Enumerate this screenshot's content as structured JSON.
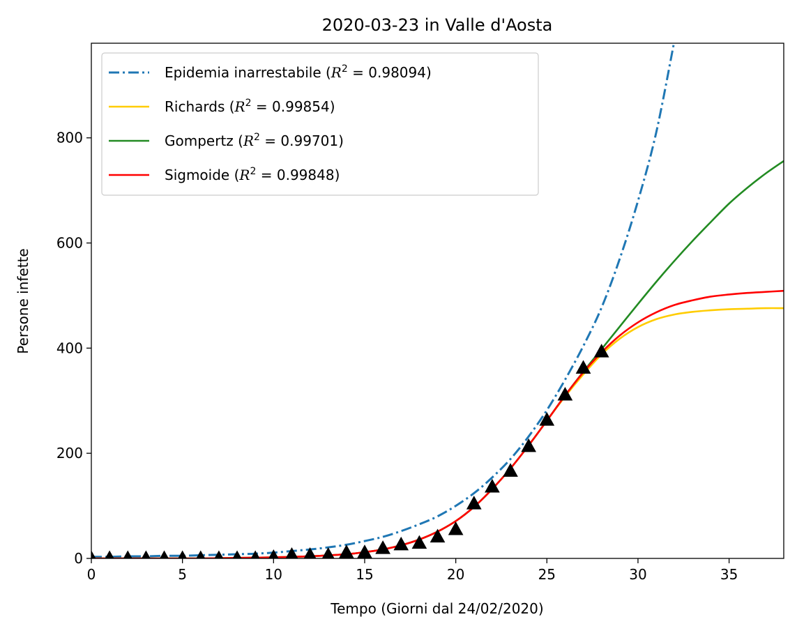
{
  "chart_data": {
    "type": "line",
    "title": "2020-03-23 in Valle d'Aosta",
    "xlabel": "Tempo (Giorni dal 24/02/2020)",
    "ylabel": "Persone infette",
    "xlim": [
      0,
      38
    ],
    "ylim": [
      0,
      980
    ],
    "xticks": [
      0,
      5,
      10,
      15,
      20,
      25,
      30,
      35
    ],
    "yticks": [
      0,
      200,
      400,
      600,
      800
    ],
    "grid": false,
    "legend_position": "top-left",
    "series": [
      {
        "name": "Epidemia inarrestabile",
        "r2": "0.98094",
        "color": "#1f77b4",
        "style": "dashdot",
        "x": [
          0,
          1,
          2,
          3,
          4,
          5,
          6,
          7,
          8,
          9,
          10,
          11,
          12,
          13,
          14,
          15,
          16,
          17,
          18,
          19,
          20,
          21,
          22,
          23,
          24,
          25,
          26,
          27,
          28,
          29,
          30,
          31,
          32
        ],
        "y": [
          3,
          3,
          4,
          4,
          5,
          5,
          6,
          7,
          8,
          9,
          11,
          14,
          17,
          21,
          26,
          33,
          41,
          52,
          65,
          80,
          100,
          124,
          154,
          189,
          232,
          282,
          340,
          404,
          477,
          570,
          680,
          810,
          985
        ]
      },
      {
        "name": "Richards",
        "r2": "0.99854",
        "color": "#ffcc00",
        "style": "solid",
        "x": [
          0,
          2,
          4,
          6,
          8,
          10,
          12,
          14,
          15,
          16,
          17,
          18,
          19,
          20,
          21,
          22,
          23,
          24,
          25,
          26,
          27,
          28,
          29,
          30,
          31,
          32,
          33,
          34,
          35,
          36,
          37,
          38
        ],
        "y": [
          0,
          0,
          0,
          0,
          1,
          2,
          4,
          8,
          12,
          17,
          25,
          36,
          51,
          71,
          98,
          132,
          171,
          215,
          262,
          308,
          350,
          388,
          418,
          440,
          455,
          464,
          469,
          472,
          474,
          475,
          476,
          476
        ]
      },
      {
        "name": "Gompertz",
        "r2": "0.99701",
        "color": "#228b22",
        "style": "solid",
        "x": [
          0,
          2,
          4,
          6,
          8,
          10,
          12,
          14,
          15,
          16,
          17,
          18,
          19,
          20,
          21,
          22,
          23,
          24,
          25,
          26,
          27,
          28,
          29,
          30,
          31,
          32,
          33,
          34,
          35,
          36,
          37,
          38
        ],
        "y": [
          0,
          0,
          0,
          0,
          1,
          2,
          4,
          8,
          12,
          17,
          25,
          36,
          51,
          71,
          98,
          132,
          171,
          215,
          262,
          310,
          355,
          398,
          441,
          484,
          526,
          566,
          604,
          640,
          675,
          705,
          732,
          756
        ]
      },
      {
        "name": "Sigmoide",
        "r2": "0.99848",
        "color": "#ff0000",
        "style": "solid",
        "x": [
          0,
          2,
          4,
          6,
          8,
          10,
          12,
          14,
          15,
          16,
          17,
          18,
          19,
          20,
          21,
          22,
          23,
          24,
          25,
          26,
          27,
          28,
          29,
          30,
          31,
          32,
          33,
          34,
          35,
          36,
          37,
          38
        ],
        "y": [
          0,
          0,
          0,
          0,
          1,
          2,
          4,
          8,
          12,
          17,
          25,
          36,
          51,
          71,
          98,
          132,
          171,
          215,
          262,
          310,
          354,
          392,
          424,
          449,
          468,
          482,
          491,
          498,
          502,
          505,
          507,
          509
        ]
      }
    ],
    "observed": {
      "marker": "triangle",
      "color": "#000000",
      "x": [
        0,
        1,
        2,
        3,
        4,
        5,
        6,
        7,
        8,
        9,
        10,
        11,
        12,
        13,
        14,
        15,
        16,
        17,
        18,
        19,
        20,
        21,
        22,
        23,
        24,
        25,
        26,
        27,
        28
      ],
      "y": [
        0,
        0,
        0,
        0,
        0,
        0,
        0,
        0,
        0,
        0,
        2,
        6,
        6,
        6,
        11,
        11,
        19,
        26,
        29,
        41,
        55,
        104,
        136,
        166,
        213,
        263,
        311,
        362,
        393
      ]
    }
  }
}
